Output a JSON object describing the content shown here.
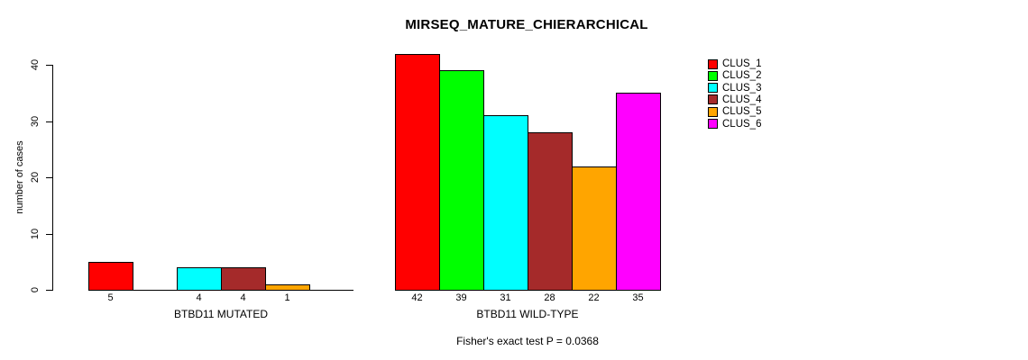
{
  "chart_data": {
    "type": "bar",
    "title": "MIRSEQ_MATURE_CHIERARCHICAL",
    "ylabel": "number of cases",
    "xlabel": "",
    "categories": [
      "BTBD11 MUTATED",
      "BTBD11 WILD-TYPE"
    ],
    "series": [
      {
        "name": "CLUS_1",
        "color": "#FF0000",
        "values": [
          5,
          42
        ]
      },
      {
        "name": "CLUS_2",
        "color": "#00FF00",
        "values": [
          0,
          39
        ]
      },
      {
        "name": "CLUS_3",
        "color": "#00FFFF",
        "values": [
          4,
          31
        ]
      },
      {
        "name": "CLUS_4",
        "color": "#A52A2A",
        "values": [
          4,
          28
        ]
      },
      {
        "name": "CLUS_5",
        "color": "#FFA500",
        "values": [
          1,
          22
        ]
      },
      {
        "name": "CLUS_6",
        "color": "#FF00FF",
        "values": [
          0,
          35
        ]
      }
    ],
    "bar_value_labels": {
      "BTBD11 MUTATED": [
        "5",
        "",
        "4",
        "4",
        "1",
        ""
      ],
      "BTBD11 WILD-TYPE": [
        "42",
        "39",
        "31",
        "28",
        "22",
        "35"
      ]
    },
    "ylim": [
      0,
      40
    ],
    "yticks": [
      "0",
      "10",
      "20",
      "30",
      "40"
    ],
    "grid": false,
    "legend_position": "right",
    "annotation": "Fisher's exact test P = 0.0368"
  }
}
